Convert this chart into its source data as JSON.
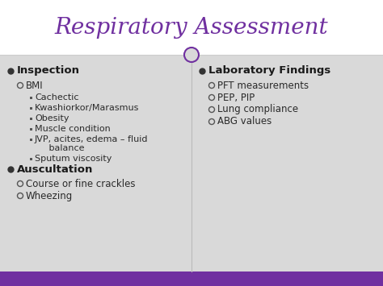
{
  "title": "Respiratory Assessment",
  "title_color": "#7030A0",
  "title_bg": "#FFFFFF",
  "content_bg": "#DCDCDC",
  "footer_color": "#7030A0",
  "divider_color": "#7030A0",
  "circle_color": "#7030A0",
  "left_col": [
    {
      "level": 1,
      "text": "Inspection"
    },
    {
      "level": 2,
      "text": "BMI"
    },
    {
      "level": 3,
      "text": "Cachectic"
    },
    {
      "level": 3,
      "text": "Kwashiorkor/Marasmus"
    },
    {
      "level": 3,
      "text": "Obesity"
    },
    {
      "level": 3,
      "text": "Muscle condition"
    },
    {
      "level": 3,
      "text": "JVP, acites, edema – fluid\n     balance"
    },
    {
      "level": 3,
      "text": "Sputum viscosity"
    },
    {
      "level": 1,
      "text": "Auscultation"
    },
    {
      "level": 2,
      "text": "Course or fine crackles"
    },
    {
      "level": 2,
      "text": "Wheezing"
    }
  ],
  "right_col": [
    {
      "level": 1,
      "text": "Laboratory Findings"
    },
    {
      "level": 2,
      "text": "PFT measurements"
    },
    {
      "level": 2,
      "text": "PEP, PIP"
    },
    {
      "level": 2,
      "text": "Lung compliance"
    },
    {
      "level": 2,
      "text": "ABG values"
    }
  ],
  "text_color": "#333333",
  "bullet1_color": "#4B4B4B",
  "bullet2_color": "#7B7B7B",
  "bullet3_color": "#555555"
}
